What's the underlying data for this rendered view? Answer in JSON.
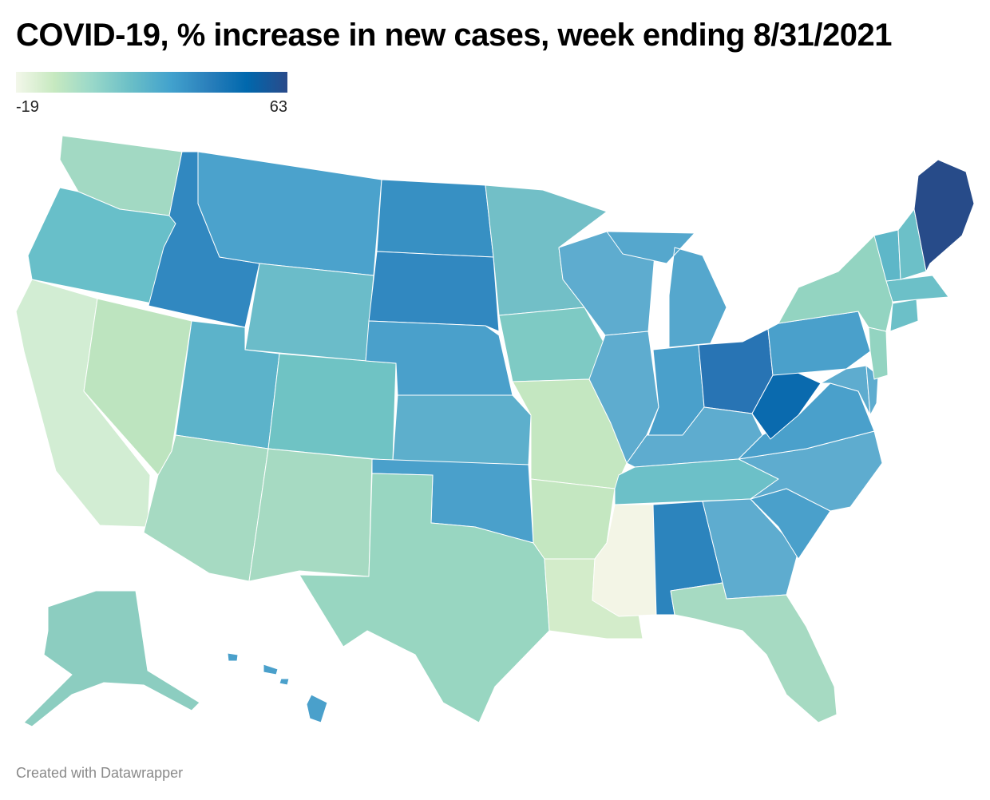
{
  "title": "COVID-19, % increase in new cases, week ending 8/31/2021",
  "legend": {
    "min_label": "-19",
    "max_label": "63",
    "min": -19,
    "max": 63,
    "stops": [
      "#f3f7ea",
      "#c7e9c0",
      "#99d8c9",
      "#6bbfc7",
      "#42a2cd",
      "#2a7fbb",
      "#0068ad",
      "#2a4a8a"
    ]
  },
  "credit": "Created with Datawrapper",
  "colors": {
    "WA": "#a2d9c3",
    "OR": "#68bfc9",
    "CA": "#d2edd3",
    "NV": "#bde4bf",
    "ID": "#3188c0",
    "MT": "#4ba2cc",
    "WY": "#6bbcc9",
    "UT": "#5cb3ca",
    "CO": "#6fc3c4",
    "AZ": "#a6dac2",
    "NM": "#a6dac2",
    "ND": "#3790c3",
    "SD": "#3188c0",
    "NE": "#4aa0cb",
    "KS": "#5dafcc",
    "OK": "#4aa0cb",
    "TX": "#98d6c1",
    "MN": "#72bfc7",
    "IA": "#7ecac4",
    "MO": "#c4e7c1",
    "AR": "#c4e7c1",
    "LA": "#d3ecca",
    "WI": "#5eaccf",
    "IL": "#5eaccf",
    "MI": "#55a7cd",
    "IN": "#4aa0cb",
    "OH": "#2874b4",
    "KY": "#5eaccf",
    "TN": "#6cc0c8",
    "MS": "#f3f5e6",
    "AL": "#2c84bd",
    "GA": "#5eaccf",
    "FL": "#a6dac2",
    "SC": "#4aa0cb",
    "NC": "#5eaccf",
    "VA": "#4aa0cb",
    "WV": "#0a6aae",
    "PA": "#4aa0cb",
    "NY": "#93d4c1",
    "NJ": "#93d4c1",
    "VT": "#5eb7c8",
    "NH": "#6cc0c8",
    "ME": "#274b89",
    "MA": "#6cc0c8",
    "CT": "#6cc0c8",
    "MD": "#5eaccf",
    "DE": "#5eaccf",
    "AK": "#8ccdc0",
    "HI": "#4aa0cb"
  }
}
